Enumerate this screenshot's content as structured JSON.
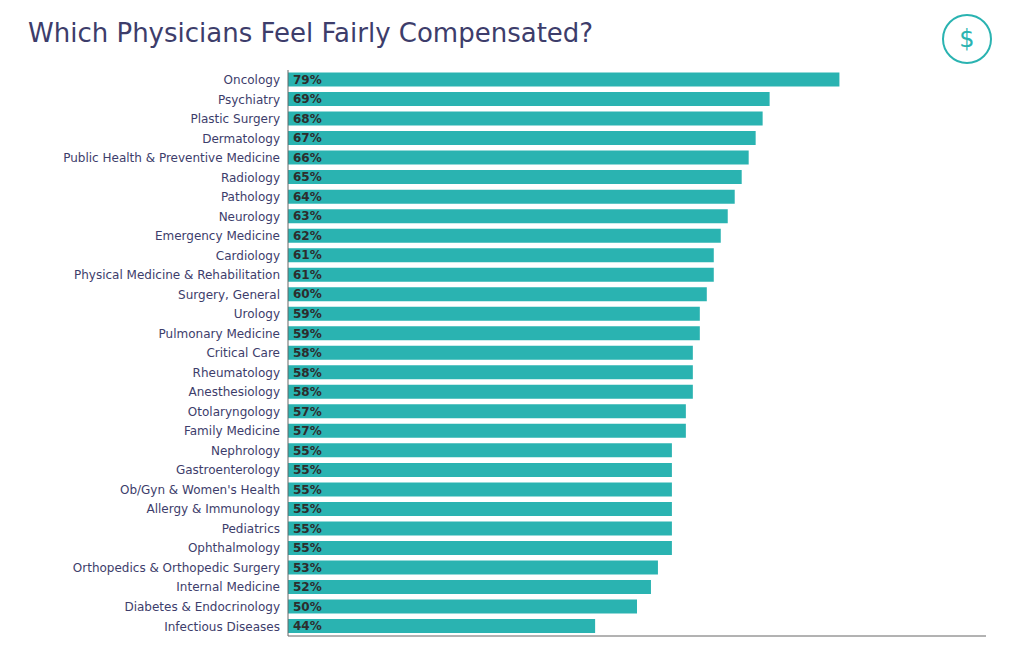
{
  "chart_data": {
    "type": "bar",
    "orientation": "horizontal",
    "title": "Which Physicians Feel Fairly Compensated?",
    "categories": [
      "Oncology",
      "Psychiatry",
      "Plastic Surgery",
      "Dermatology",
      "Public Health & Preventive Medicine",
      "Radiology",
      "Pathology",
      "Neurology",
      "Emergency Medicine",
      "Cardiology",
      "Physical Medicine & Rehabilitation",
      "Surgery, General",
      "Urology",
      "Pulmonary Medicine",
      "Critical Care",
      "Rheumatology",
      "Anesthesiology",
      "Otolaryngology",
      "Family Medicine",
      "Nephrology",
      "Gastroenterology",
      "Ob/Gyn & Women's Health",
      "Allergy & Immunology",
      "Pediatrics",
      "Ophthalmology",
      "Orthopedics & Orthopedic Surgery",
      "Internal Medicine",
      "Diabetes & Endocrinology",
      "Infectious Diseases"
    ],
    "values": [
      79,
      69,
      68,
      67,
      66,
      65,
      64,
      63,
      62,
      61,
      61,
      60,
      59,
      59,
      58,
      58,
      58,
      57,
      57,
      55,
      55,
      55,
      55,
      55,
      55,
      53,
      52,
      50,
      44
    ],
    "value_labels": [
      "79%",
      "69%",
      "68%",
      "67%",
      "66%",
      "65%",
      "64%",
      "63%",
      "62%",
      "61%",
      "61%",
      "60%",
      "59%",
      "59%",
      "58%",
      "58%",
      "58%",
      "57%",
      "57%",
      "55%",
      "55%",
      "55%",
      "55%",
      "55%",
      "55%",
      "53%",
      "52%",
      "50%",
      "44%"
    ],
    "color": "#2ab3b1",
    "xlim": [
      0,
      100
    ],
    "grid": false,
    "data_labels": true,
    "tick_labels": "y",
    "annotations": [
      "$"
    ]
  }
}
